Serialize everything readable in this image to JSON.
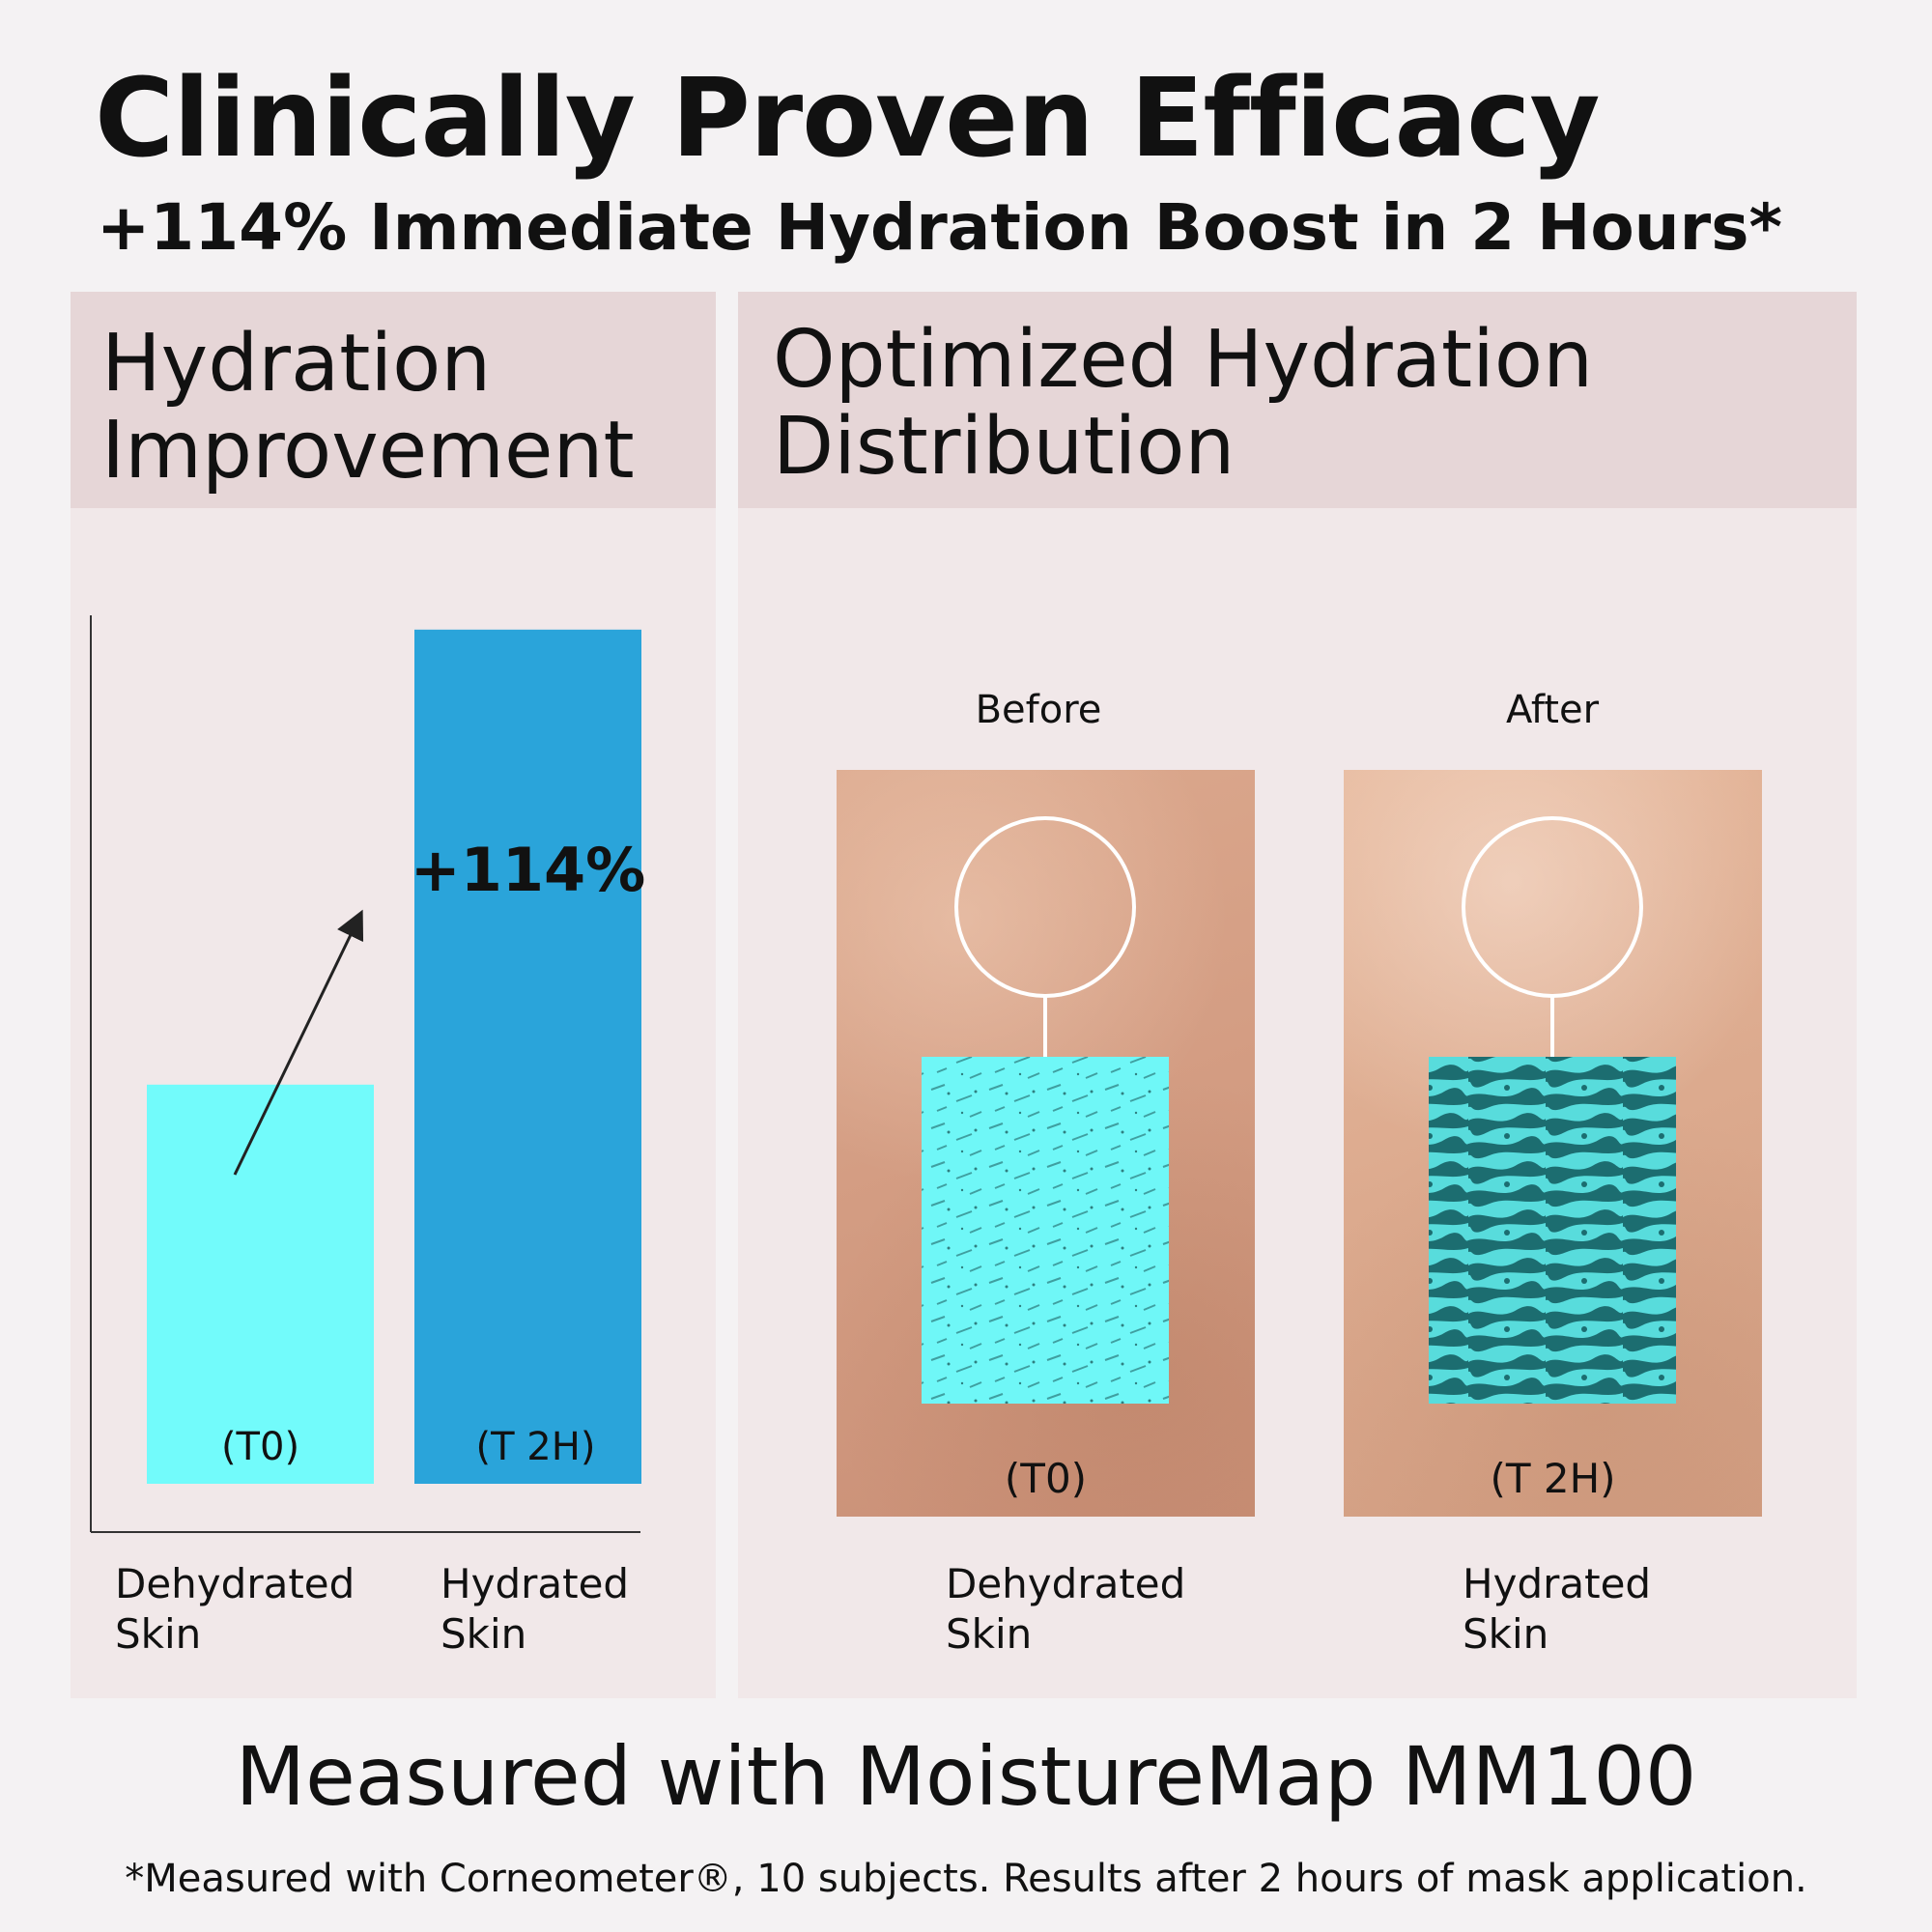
{
  "header": {
    "title": "Clinically Proven Efficacy",
    "subtitle": "+114% Immediate Hydration Boost in 2 Hours*"
  },
  "left_panel": {
    "heading": "Hydration\nImprovement"
  },
  "right_panel": {
    "heading": "Optimized Hydration\nDistribution",
    "before_label": "Before",
    "after_label": "After",
    "before_time": "(T0)",
    "after_time": "(T 2H)",
    "before_caption": "Dehydrated\nSkin",
    "after_caption": "Hydrated\nSkin"
  },
  "chart_data": {
    "type": "bar",
    "title": "Hydration Improvement",
    "categories": [
      "Dehydrated\nSkin",
      "Hydrated\nSkin"
    ],
    "bar_tags": [
      "(T0)",
      "(T 2H)"
    ],
    "values": [
      100,
      214
    ],
    "ylim": [
      0,
      220
    ],
    "data_labels": [
      "",
      "+114%"
    ],
    "colors": [
      "#72fbfb",
      "#2aa4da"
    ],
    "annotation": "upward arrow between bars",
    "grid": false
  },
  "footer": {
    "main": "Measured with MoistureMap MM100",
    "footnote": "*Measured with Corneometer®, 10 subjects. Results after 2 hours of mask application."
  },
  "colors": {
    "header_band": "#e6d6d7",
    "panel_bg": "#f1e8e9",
    "page_bg": "#f4f2f3",
    "map_light": "#6ff7f7",
    "map_dark": "#1c6d70"
  }
}
